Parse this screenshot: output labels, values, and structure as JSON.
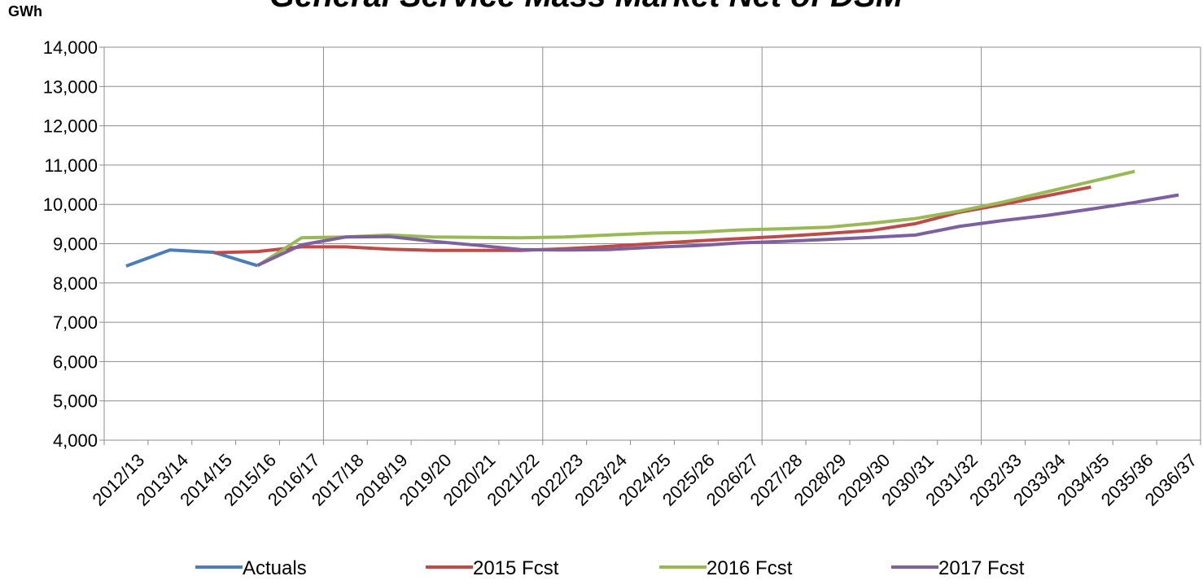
{
  "chart_data": {
    "type": "line",
    "title": "General Service Mass Market Net of DSM",
    "y_axis_label": "GWh",
    "categories": [
      "2012/13",
      "2013/14",
      "2014/15",
      "2015/16",
      "2016/17",
      "2017/18",
      "2018/19",
      "2019/20",
      "2020/21",
      "2021/22",
      "2022/23",
      "2023/24",
      "2024/25",
      "2025/26",
      "2026/27",
      "2027/28",
      "2028/29",
      "2029/30",
      "2030/31",
      "2031/32",
      "2032/33",
      "2033/34",
      "2034/35",
      "2035/36",
      "2036/37"
    ],
    "series": [
      {
        "name": "Actuals",
        "color": "#4a7ebb",
        "values": [
          8430,
          8840,
          8780,
          8440,
          null,
          null,
          null,
          null,
          null,
          null,
          null,
          null,
          null,
          null,
          null,
          null,
          null,
          null,
          null,
          null,
          null,
          null,
          null,
          null,
          null
        ]
      },
      {
        "name": "2015 Fcst",
        "color": "#be4b48",
        "values": [
          null,
          null,
          8770,
          8800,
          8920,
          8920,
          8860,
          8830,
          8830,
          8830,
          8870,
          8930,
          9000,
          9070,
          9130,
          9190,
          9260,
          9340,
          9510,
          9800,
          10000,
          10220,
          10440,
          null,
          null
        ]
      },
      {
        "name": "2016 Fcst",
        "color": "#98b954",
        "values": [
          null,
          null,
          null,
          8440,
          9150,
          9170,
          9220,
          9170,
          9160,
          9150,
          9170,
          9220,
          9270,
          9290,
          9350,
          9380,
          9420,
          9520,
          9640,
          9830,
          10060,
          10320,
          10580,
          10840,
          null
        ]
      },
      {
        "name": "2017 Fcst",
        "color": "#7d60a0",
        "values": [
          null,
          null,
          null,
          8450,
          8970,
          9170,
          9180,
          9060,
          8960,
          8850,
          8840,
          8850,
          8910,
          8950,
          9020,
          9060,
          9110,
          9160,
          9220,
          9440,
          9590,
          9720,
          9880,
          10050,
          10240
        ]
      }
    ],
    "ylim": [
      4000,
      14000
    ],
    "yticks": [
      {
        "value": 4000,
        "label": "4,000"
      },
      {
        "value": 5000,
        "label": "5,000"
      },
      {
        "value": 6000,
        "label": "6,000"
      },
      {
        "value": 7000,
        "label": "7,000"
      },
      {
        "value": 8000,
        "label": "8,000"
      },
      {
        "value": 9000,
        "label": "9,000"
      },
      {
        "value": 10000,
        "label": "10,000"
      },
      {
        "value": 11000,
        "label": "11,000"
      },
      {
        "value": 12000,
        "label": "12,000"
      },
      {
        "value": 13000,
        "label": "13,000"
      },
      {
        "value": 14000,
        "label": "14,000"
      }
    ],
    "grid": true,
    "legend": "bottom"
  }
}
